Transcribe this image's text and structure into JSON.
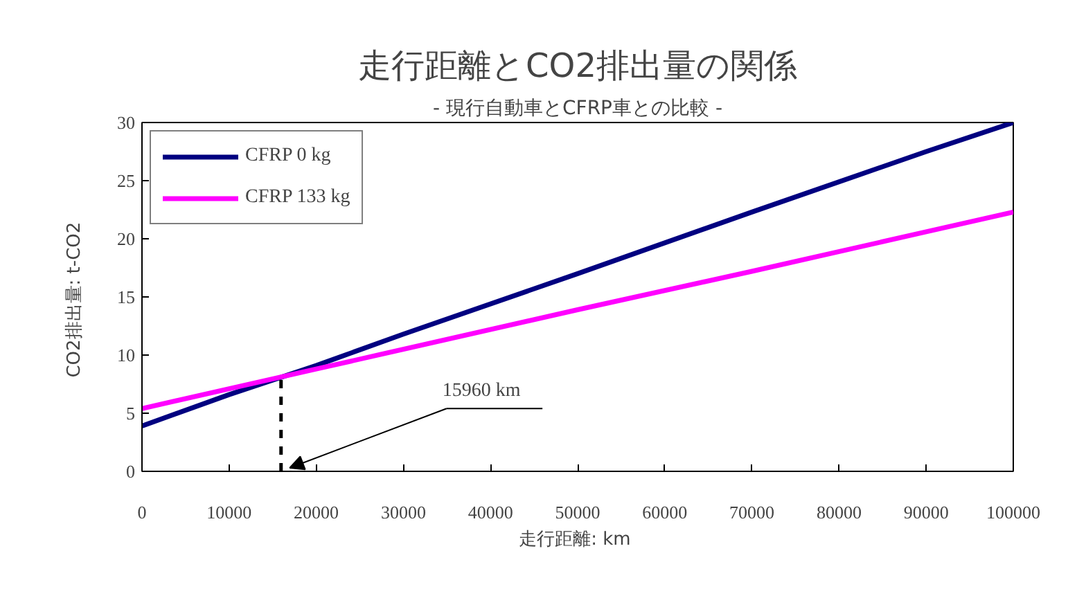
{
  "chart_data": {
    "type": "line",
    "title": "走行距離とCO2排出量の関係",
    "subtitle": "- 現行自動車とCFRP車との比較 -",
    "xlabel": "走行距離:  km",
    "ylabel": "CO2排出量:  t-CO2",
    "series": [
      {
        "name": "CFRP 0 kg",
        "color": "#000080",
        "x": [
          0,
          10000,
          20000,
          30000,
          50000,
          70000,
          90000,
          100000
        ],
        "values": [
          3.9,
          6.6,
          9.1,
          11.8,
          17.0,
          22.3,
          27.5,
          30
        ]
      },
      {
        "name": "CFRP 133 kg",
        "color": "#ff00ff",
        "x": [
          0,
          20000,
          50000,
          70000,
          90000,
          100000
        ],
        "values": [
          5.4,
          8.8,
          13.9,
          17.2,
          20.6,
          22.3
        ]
      }
    ],
    "xlim": [
      0,
      100000
    ],
    "ylim": [
      0,
      30
    ],
    "xticks": [
      0,
      10000,
      20000,
      30000,
      40000,
      50000,
      60000,
      70000,
      80000,
      90000,
      100000
    ],
    "yticks": [
      0,
      5,
      10,
      15,
      20,
      25,
      30
    ],
    "ref_lines": [
      {
        "axis": "x",
        "value": 15960,
        "label": null,
        "color": "#000000",
        "line_style": "dashed"
      }
    ],
    "annotations": [
      "15960 km"
    ],
    "grid": false,
    "legend": "top left",
    "marker": "none",
    "line_style": "solid"
  }
}
